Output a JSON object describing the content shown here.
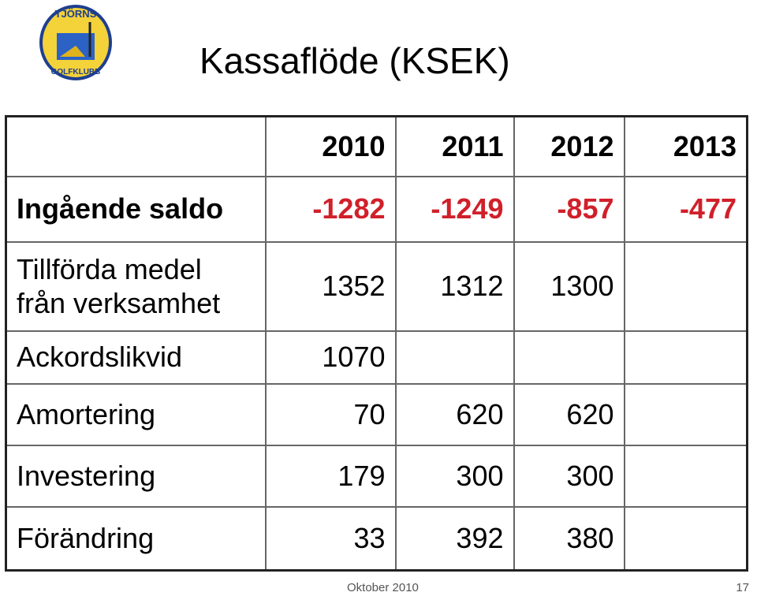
{
  "logo": {
    "top": "TJÖRNS",
    "bottom": "GOLFKLUBB"
  },
  "header": {
    "title": "Kassaflöde (KSEK)"
  },
  "table": {
    "columns": [
      2010,
      2011,
      2012,
      2013
    ],
    "rows": [
      {
        "label": "Ingående saldo",
        "values": [
          -1282,
          -1249,
          -857,
          -477
        ]
      },
      {
        "label": "Tillförda medel från verksamhet",
        "values": [
          1352,
          1312,
          1300,
          null
        ]
      },
      {
        "label": "Ackordslikvid",
        "values": [
          1070,
          null,
          null,
          null
        ]
      },
      {
        "label": "Amortering",
        "values": [
          70,
          620,
          620,
          null
        ]
      },
      {
        "label": "Investering",
        "values": [
          179,
          300,
          300,
          null
        ]
      },
      {
        "label": "Förändring",
        "values": [
          33,
          392,
          380,
          null
        ]
      }
    ]
  },
  "footer": {
    "date": "Oktober 2010",
    "page": 17
  }
}
